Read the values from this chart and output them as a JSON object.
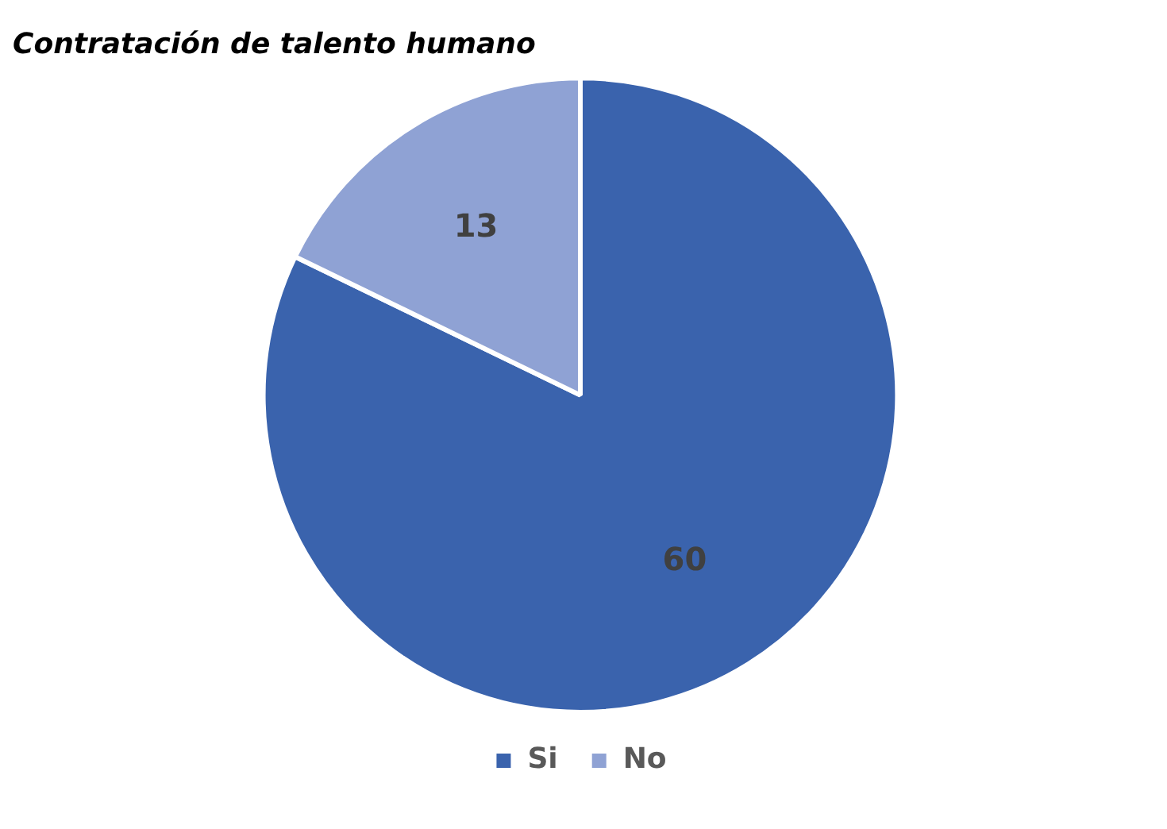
{
  "chart_data": {
    "type": "pie",
    "title": "Contratación de talento humano",
    "categories": [
      "Si",
      "No"
    ],
    "values": [
      60,
      13
    ],
    "colors": [
      "#3a63ad",
      "#8fa2d4"
    ],
    "data_labels": true,
    "legend": "bottom"
  }
}
